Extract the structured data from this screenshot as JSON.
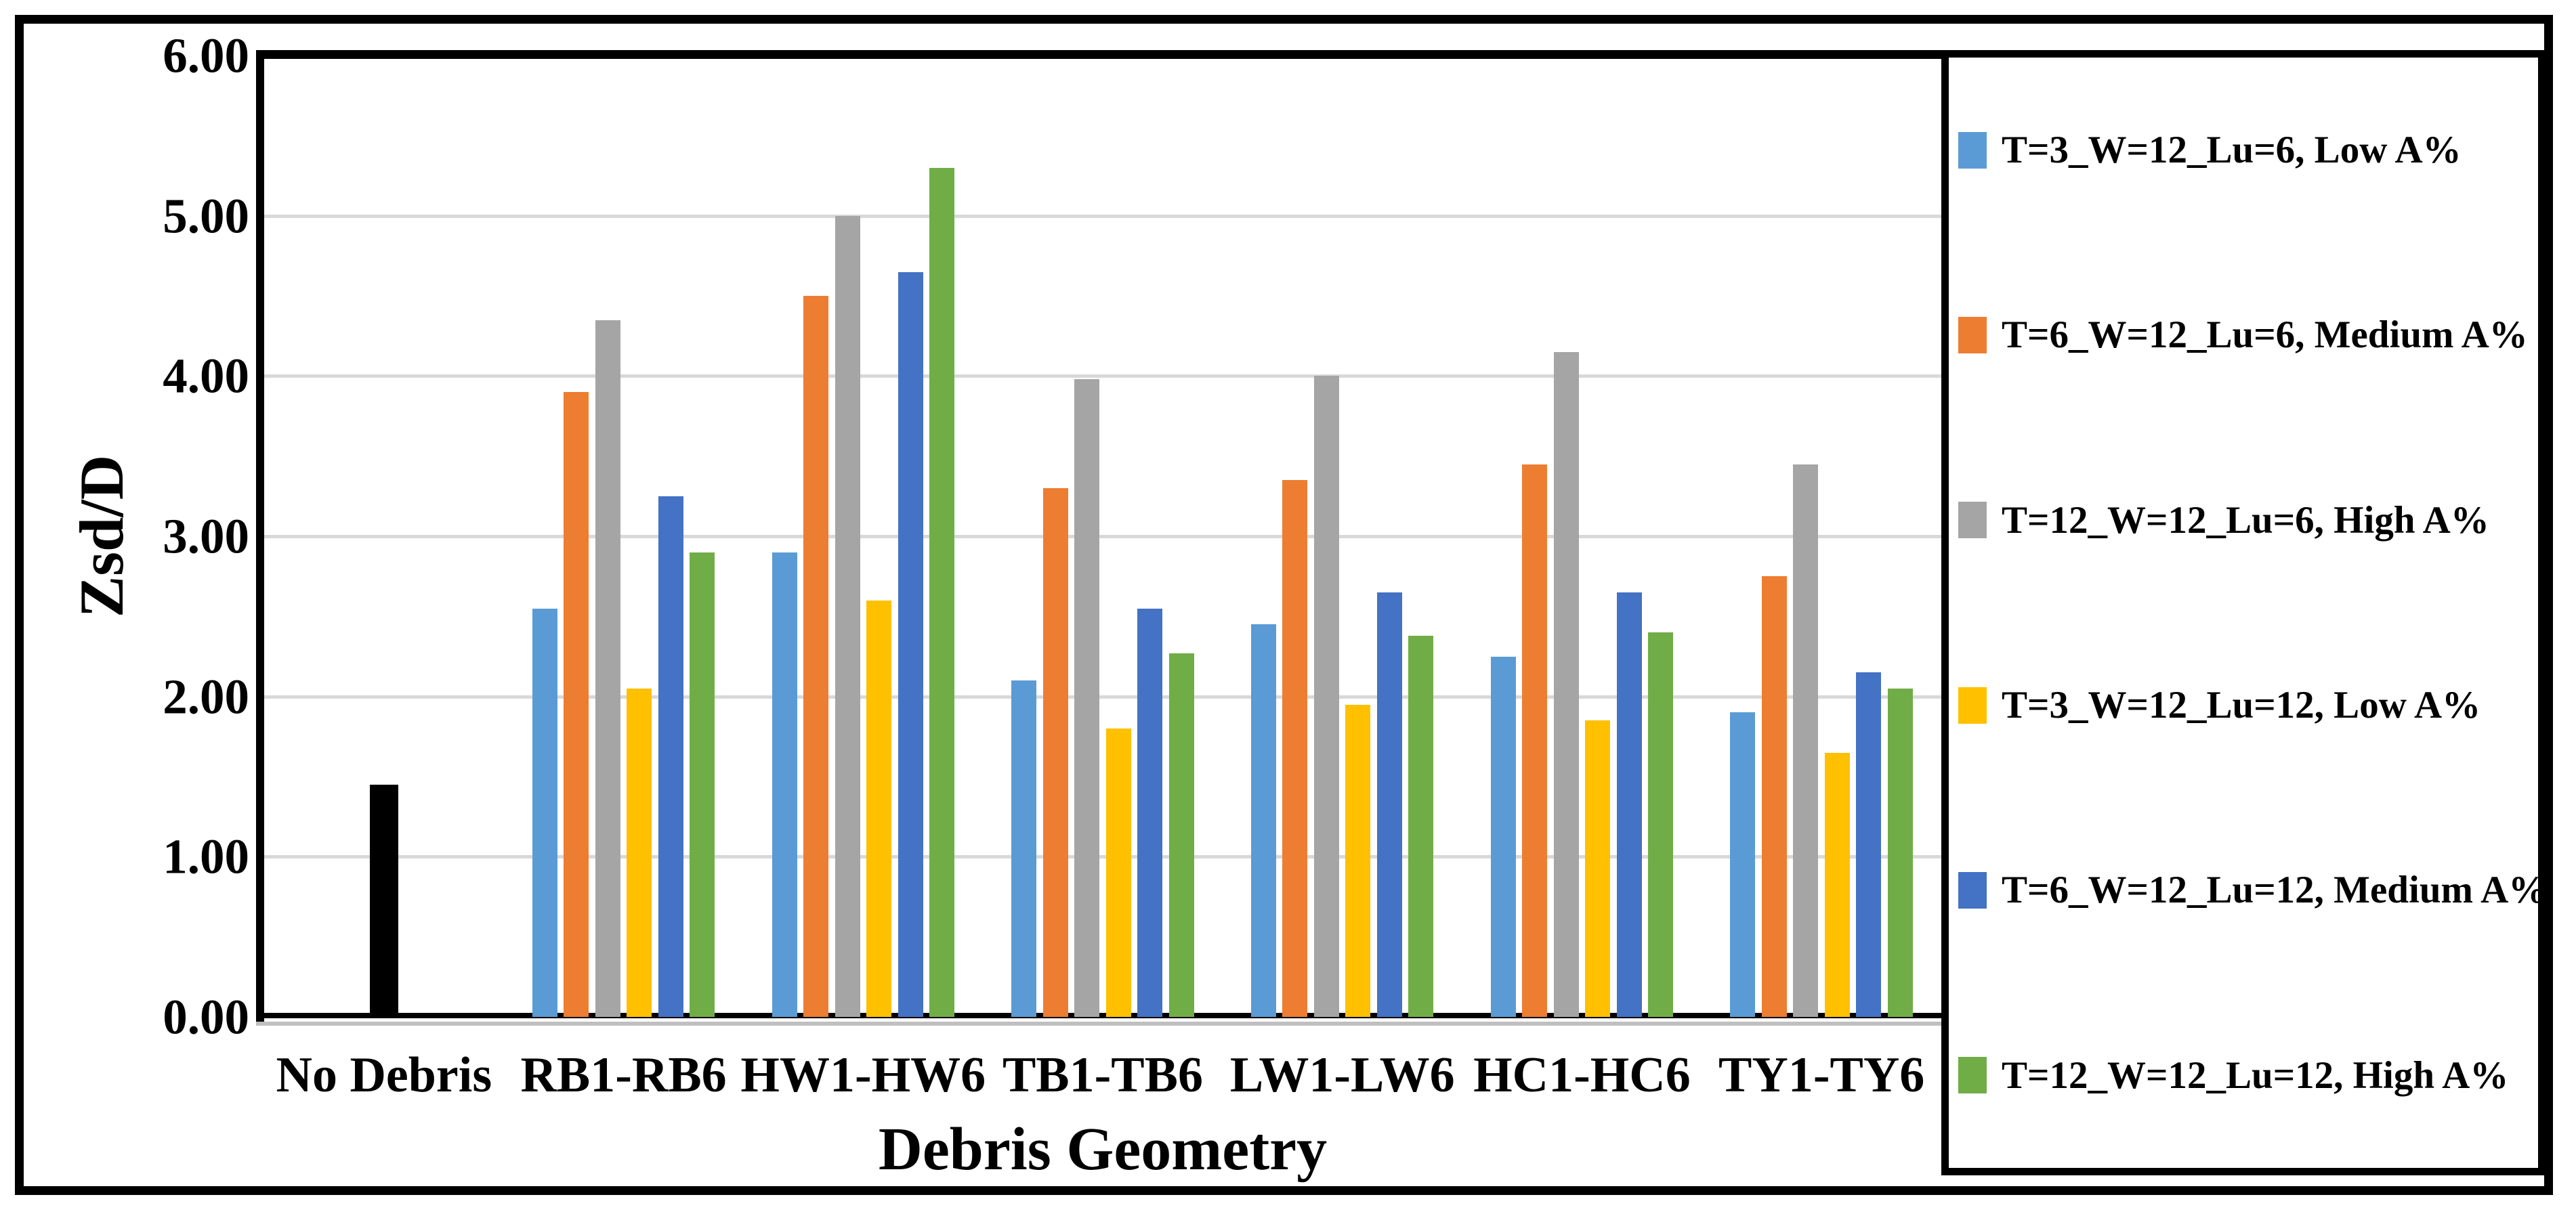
{
  "chart_data": {
    "type": "bar",
    "title": "",
    "xlabel": "Debris Geometry",
    "ylabel": "Zsd/D",
    "ylim": [
      0,
      6
    ],
    "ytick_labels": [
      "0.00",
      "1.00",
      "2.00",
      "3.00",
      "4.00",
      "5.00",
      "6.00"
    ],
    "grid": "horizontal",
    "legend_position": "right",
    "categories": [
      "No Debris",
      "RB1-RB6",
      "HW1-HW6",
      "TB1-TB6",
      "LW1-LW6",
      "HC1-HC6",
      "TY1-TY6"
    ],
    "series": [
      {
        "name": "No Debris",
        "color": "#000000",
        "in_legend": false,
        "values": [
          1.45,
          null,
          null,
          null,
          null,
          null,
          null
        ]
      },
      {
        "name": "T=3_W=12_Lu=6, Low A%",
        "color": "#5B9BD5",
        "in_legend": true,
        "values": [
          null,
          2.55,
          2.9,
          2.1,
          2.45,
          2.25,
          1.9
        ]
      },
      {
        "name": "T=6_W=12_Lu=6, Medium A%",
        "color": "#ED7D31",
        "in_legend": true,
        "values": [
          null,
          3.9,
          4.5,
          3.3,
          3.35,
          3.45,
          2.75
        ]
      },
      {
        "name": "T=12_W=12_Lu=6, High A%",
        "color": "#A5A5A5",
        "in_legend": true,
        "values": [
          null,
          4.35,
          5.0,
          3.98,
          4.0,
          4.15,
          3.45
        ]
      },
      {
        "name": "T=3_W=12_Lu=12, Low A%",
        "color": "#FFC000",
        "in_legend": true,
        "values": [
          null,
          2.05,
          2.6,
          1.8,
          1.95,
          1.85,
          1.65
        ]
      },
      {
        "name": "T=6_W=12_Lu=12, Medium A%",
        "color": "#4472C4",
        "in_legend": true,
        "values": [
          null,
          3.25,
          4.65,
          2.55,
          2.65,
          2.65,
          2.15
        ]
      },
      {
        "name": "T=12_W=12_Lu=12, High A%",
        "color": "#70AD47",
        "in_legend": true,
        "values": [
          null,
          2.9,
          5.3,
          2.27,
          2.38,
          2.4,
          2.05
        ]
      }
    ]
  }
}
